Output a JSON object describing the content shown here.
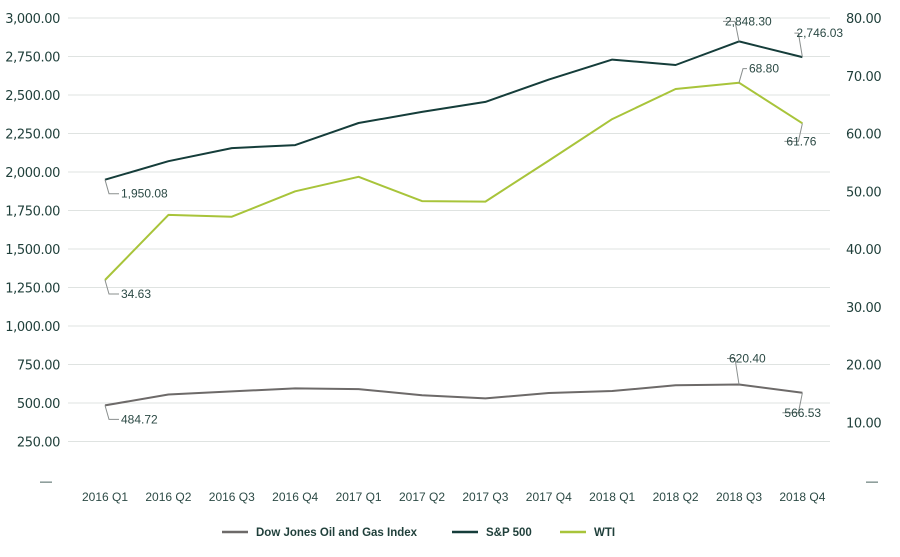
{
  "chart_data": {
    "type": "line",
    "categories": [
      "2016 Q1",
      "2016 Q2",
      "2016 Q3",
      "2016 Q4",
      "2017 Q1",
      "2017 Q2",
      "2017 Q3",
      "2017 Q4",
      "2018 Q1",
      "2018 Q2",
      "2018 Q3",
      "2018 Q4"
    ],
    "left_axis": {
      "ylim": [
        0,
        3000
      ],
      "ticks": [
        "3,000.00",
        "2,750.00",
        "2,500.00",
        "2,250.00",
        "2,000.00",
        "1,750.00",
        "1,500.00",
        "1,250.00",
        "1,000.00",
        "750.00",
        "500.00",
        "250.00"
      ],
      "tick_values": [
        3000,
        2750,
        2500,
        2250,
        2000,
        1750,
        1500,
        1250,
        1000,
        750,
        500,
        250
      ],
      "zero_label": "—"
    },
    "right_axis": {
      "ylim": [
        0,
        80
      ],
      "ticks": [
        "80.00",
        "70.00",
        "60.00",
        "50.00",
        "40.00",
        "30.00",
        "20.00",
        "10.00"
      ],
      "tick_values": [
        80,
        70,
        60,
        50,
        40,
        30,
        20,
        10
      ],
      "zero_label": "—"
    },
    "series": [
      {
        "name": "Dow Jones Oil and Gas Index",
        "axis": "left",
        "color": "#6d6a69",
        "values": [
          484.72,
          555,
          575,
          595,
          590,
          550,
          530,
          565,
          578,
          615,
          620.4,
          566.53
        ]
      },
      {
        "name": "S&P 500",
        "axis": "left",
        "color": "#153d3a",
        "values": [
          1950.08,
          2070,
          2155,
          2175,
          2318,
          2390,
          2455,
          2600,
          2730,
          2695,
          2848.3,
          2746.03
        ]
      },
      {
        "name": "WTI",
        "axis": "right",
        "color": "#a8c43a",
        "values": [
          34.63,
          45.9,
          45.6,
          50.0,
          52.5,
          48.3,
          48.2,
          55.3,
          62.5,
          67.7,
          68.8,
          61.76
        ]
      }
    ],
    "data_labels": [
      {
        "series": 1,
        "index": 0,
        "text": "1,950.08"
      },
      {
        "series": 1,
        "index": 10,
        "text": "2,848.30"
      },
      {
        "series": 1,
        "index": 11,
        "text": "2,746.03"
      },
      {
        "series": 2,
        "index": 0,
        "text": "34.63"
      },
      {
        "series": 2,
        "index": 10,
        "text": "68.80"
      },
      {
        "series": 2,
        "index": 11,
        "text": "61.76"
      },
      {
        "series": 0,
        "index": 0,
        "text": "484.72"
      },
      {
        "series": 0,
        "index": 10,
        "text": "620.40"
      },
      {
        "series": 0,
        "index": 11,
        "text": "566.53"
      }
    ],
    "grid": true,
    "legend_position": "bottom"
  }
}
